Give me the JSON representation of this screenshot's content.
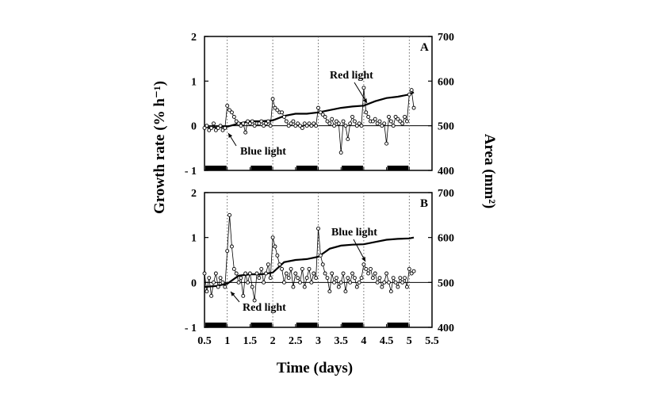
{
  "figure": {
    "ylabel_left": "Growth rate (% h⁻¹)",
    "ylabel_right": "Area (mm²)",
    "xlabel": "Time (days)"
  },
  "chart_data": [
    {
      "type": "line",
      "panel_label": "A",
      "xlim": [
        0.5,
        5.5
      ],
      "ylim": [
        -1,
        2
      ],
      "ylim_right": [
        400,
        700
      ],
      "yticks": [
        "2",
        "1",
        "0",
        "- 1"
      ],
      "yticks_right": [
        "700",
        "600",
        "500",
        "400"
      ],
      "grid": "dotted vertical lines at day boundaries",
      "dark_periods": [
        [
          0.5,
          1.0
        ],
        [
          1.5,
          2.0
        ],
        [
          2.5,
          3.0
        ],
        [
          3.5,
          4.0
        ],
        [
          4.5,
          5.0
        ]
      ],
      "annotations": [
        {
          "text": "Blue light",
          "x": 1.0,
          "y": -0.05
        },
        {
          "text": "Red light",
          "x": 4.0,
          "y": 0.35
        }
      ],
      "series": [
        {
          "axis": "left",
          "style": "open circles",
          "x": [
            0.5,
            0.55,
            0.6,
            0.65,
            0.7,
            0.75,
            0.8,
            0.85,
            0.9,
            0.95,
            1.0,
            1.05,
            1.1,
            1.15,
            1.2,
            1.25,
            1.3,
            1.35,
            1.4,
            1.45,
            1.5,
            1.55,
            1.6,
            1.65,
            1.7,
            1.75,
            1.8,
            1.85,
            1.9,
            1.95,
            2.0,
            2.05,
            2.1,
            2.15,
            2.2,
            2.25,
            2.3,
            2.35,
            2.4,
            2.45,
            2.5,
            2.55,
            2.6,
            2.65,
            2.7,
            2.75,
            2.8,
            2.85,
            2.9,
            2.95,
            3.0,
            3.05,
            3.1,
            3.15,
            3.2,
            3.25,
            3.3,
            3.35,
            3.4,
            3.45,
            3.5,
            3.55,
            3.6,
            3.65,
            3.7,
            3.75,
            3.8,
            3.85,
            3.9,
            3.95,
            4.0,
            4.05,
            4.1,
            4.15,
            4.2,
            4.25,
            4.3,
            4.35,
            4.4,
            4.45,
            4.5,
            4.55,
            4.6,
            4.65,
            4.7,
            4.75,
            4.8,
            4.85,
            4.9,
            4.95,
            5.0,
            5.05,
            5.1
          ],
          "values": [
            -0.05,
            0.0,
            -0.1,
            -0.05,
            0.05,
            -0.1,
            -0.05,
            0.0,
            -0.1,
            -0.05,
            0.45,
            0.35,
            0.3,
            0.2,
            0.1,
            0.05,
            0.0,
            0.05,
            -0.15,
            0.1,
            0.05,
            0.1,
            0.0,
            0.05,
            0.05,
            0.1,
            0.0,
            0.05,
            0.1,
            0.0,
            0.6,
            0.4,
            0.35,
            0.3,
            0.3,
            0.2,
            0.1,
            0.0,
            0.05,
            0.1,
            0.0,
            0.05,
            0.0,
            -0.05,
            0.05,
            0.0,
            0.05,
            0.0,
            0.05,
            0.0,
            0.4,
            0.3,
            0.25,
            0.2,
            0.1,
            0.05,
            0.15,
            0.0,
            0.1,
            0.05,
            -0.6,
            0.1,
            0.0,
            -0.3,
            0.05,
            0.2,
            0.1,
            0.0,
            0.05,
            0.0,
            0.85,
            0.3,
            0.2,
            0.1,
            0.1,
            0.15,
            0.05,
            0.1,
            0.0,
            0.05,
            -0.4,
            0.2,
            0.1,
            0.0,
            0.2,
            0.15,
            0.1,
            0.05,
            0.2,
            0.1,
            0.7,
            0.8,
            0.4
          ]
        },
        {
          "axis": "right",
          "style": "solid line",
          "x": [
            0.5,
            0.75,
            1.0,
            1.25,
            1.5,
            1.75,
            2.0,
            2.25,
            2.5,
            2.75,
            3.0,
            3.25,
            3.5,
            3.75,
            4.0,
            4.25,
            4.5,
            4.75,
            5.0,
            5.1
          ],
          "values": [
            497,
            497,
            498,
            505,
            510,
            510,
            512,
            522,
            527,
            527,
            530,
            535,
            540,
            543,
            545,
            555,
            562,
            565,
            570,
            575
          ]
        }
      ]
    },
    {
      "type": "line",
      "panel_label": "B",
      "xlim": [
        0.5,
        5.5
      ],
      "ylim": [
        -1,
        2
      ],
      "ylim_right": [
        400,
        700
      ],
      "yticks": [
        "2",
        "1",
        "0",
        "- 1"
      ],
      "yticks_right": [
        "700",
        "600",
        "500",
        "400"
      ],
      "xticks": [
        "0.5",
        "1",
        "1.5",
        "2",
        "2.5",
        "3",
        "3.5",
        "4",
        "4.5",
        "5",
        "5.5"
      ],
      "grid": "dotted vertical lines at day boundaries",
      "dark_periods": [
        [
          0.5,
          1.0
        ],
        [
          1.5,
          2.0
        ],
        [
          2.5,
          3.0
        ],
        [
          3.5,
          4.0
        ],
        [
          4.5,
          5.0
        ]
      ],
      "annotations": [
        {
          "text": "Red light",
          "x": 1.15,
          "y": -0.1
        },
        {
          "text": "Blue light",
          "x": 4.0,
          "y": 0.55
        }
      ],
      "series": [
        {
          "axis": "left",
          "style": "open circles",
          "x": [
            0.5,
            0.55,
            0.6,
            0.65,
            0.7,
            0.75,
            0.8,
            0.85,
            0.9,
            0.95,
            1.0,
            1.05,
            1.1,
            1.15,
            1.2,
            1.25,
            1.3,
            1.35,
            1.4,
            1.45,
            1.5,
            1.55,
            1.6,
            1.65,
            1.7,
            1.75,
            1.8,
            1.85,
            1.9,
            1.95,
            2.0,
            2.05,
            2.1,
            2.15,
            2.2,
            2.25,
            2.3,
            2.35,
            2.4,
            2.45,
            2.5,
            2.55,
            2.6,
            2.65,
            2.7,
            2.75,
            2.8,
            2.85,
            2.9,
            2.95,
            3.0,
            3.05,
            3.1,
            3.15,
            3.2,
            3.25,
            3.3,
            3.35,
            3.4,
            3.45,
            3.5,
            3.55,
            3.6,
            3.65,
            3.7,
            3.75,
            3.8,
            3.85,
            3.9,
            3.95,
            4.0,
            4.05,
            4.1,
            4.15,
            4.2,
            4.25,
            4.3,
            4.35,
            4.4,
            4.45,
            4.5,
            4.55,
            4.6,
            4.65,
            4.7,
            4.75,
            4.8,
            4.85,
            4.9,
            4.95,
            5.0,
            5.05,
            5.1
          ],
          "values": [
            0.2,
            -0.2,
            0.1,
            -0.3,
            0.0,
            0.2,
            -0.1,
            0.1,
            0.0,
            -0.1,
            0.7,
            1.5,
            0.8,
            0.3,
            0.2,
            0.0,
            0.1,
            -0.3,
            0.2,
            0.0,
            0.2,
            -0.1,
            -0.4,
            0.2,
            0.1,
            0.3,
            0.0,
            0.2,
            0.4,
            0.1,
            1.0,
            0.8,
            0.6,
            0.4,
            0.3,
            0.0,
            0.2,
            0.1,
            0.3,
            -0.1,
            0.2,
            0.1,
            0.0,
            0.3,
            -0.1,
            0.1,
            0.3,
            0.0,
            0.2,
            0.1,
            1.2,
            0.6,
            0.4,
            0.2,
            0.1,
            -0.2,
            0.2,
            0.0,
            0.1,
            -0.1,
            0.0,
            0.2,
            -0.2,
            0.1,
            0.0,
            0.2,
            0.1,
            -0.1,
            0.0,
            0.1,
            0.4,
            0.3,
            0.2,
            0.3,
            0.1,
            0.2,
            0.0,
            0.1,
            -0.1,
            0.0,
            0.2,
            0.0,
            -0.2,
            0.1,
            0.0,
            -0.1,
            0.1,
            0.0,
            0.1,
            -0.1,
            0.3,
            0.2,
            0.25
          ]
        },
        {
          "axis": "right",
          "style": "solid line",
          "x": [
            0.5,
            0.75,
            1.0,
            1.25,
            1.5,
            1.75,
            2.0,
            2.25,
            2.5,
            2.75,
            3.0,
            3.25,
            3.5,
            3.75,
            4.0,
            4.25,
            4.5,
            4.75,
            5.0,
            5.1
          ],
          "values": [
            490,
            492,
            497,
            515,
            518,
            518,
            522,
            545,
            550,
            552,
            557,
            575,
            582,
            584,
            585,
            590,
            595,
            597,
            598,
            600
          ]
        }
      ]
    }
  ]
}
